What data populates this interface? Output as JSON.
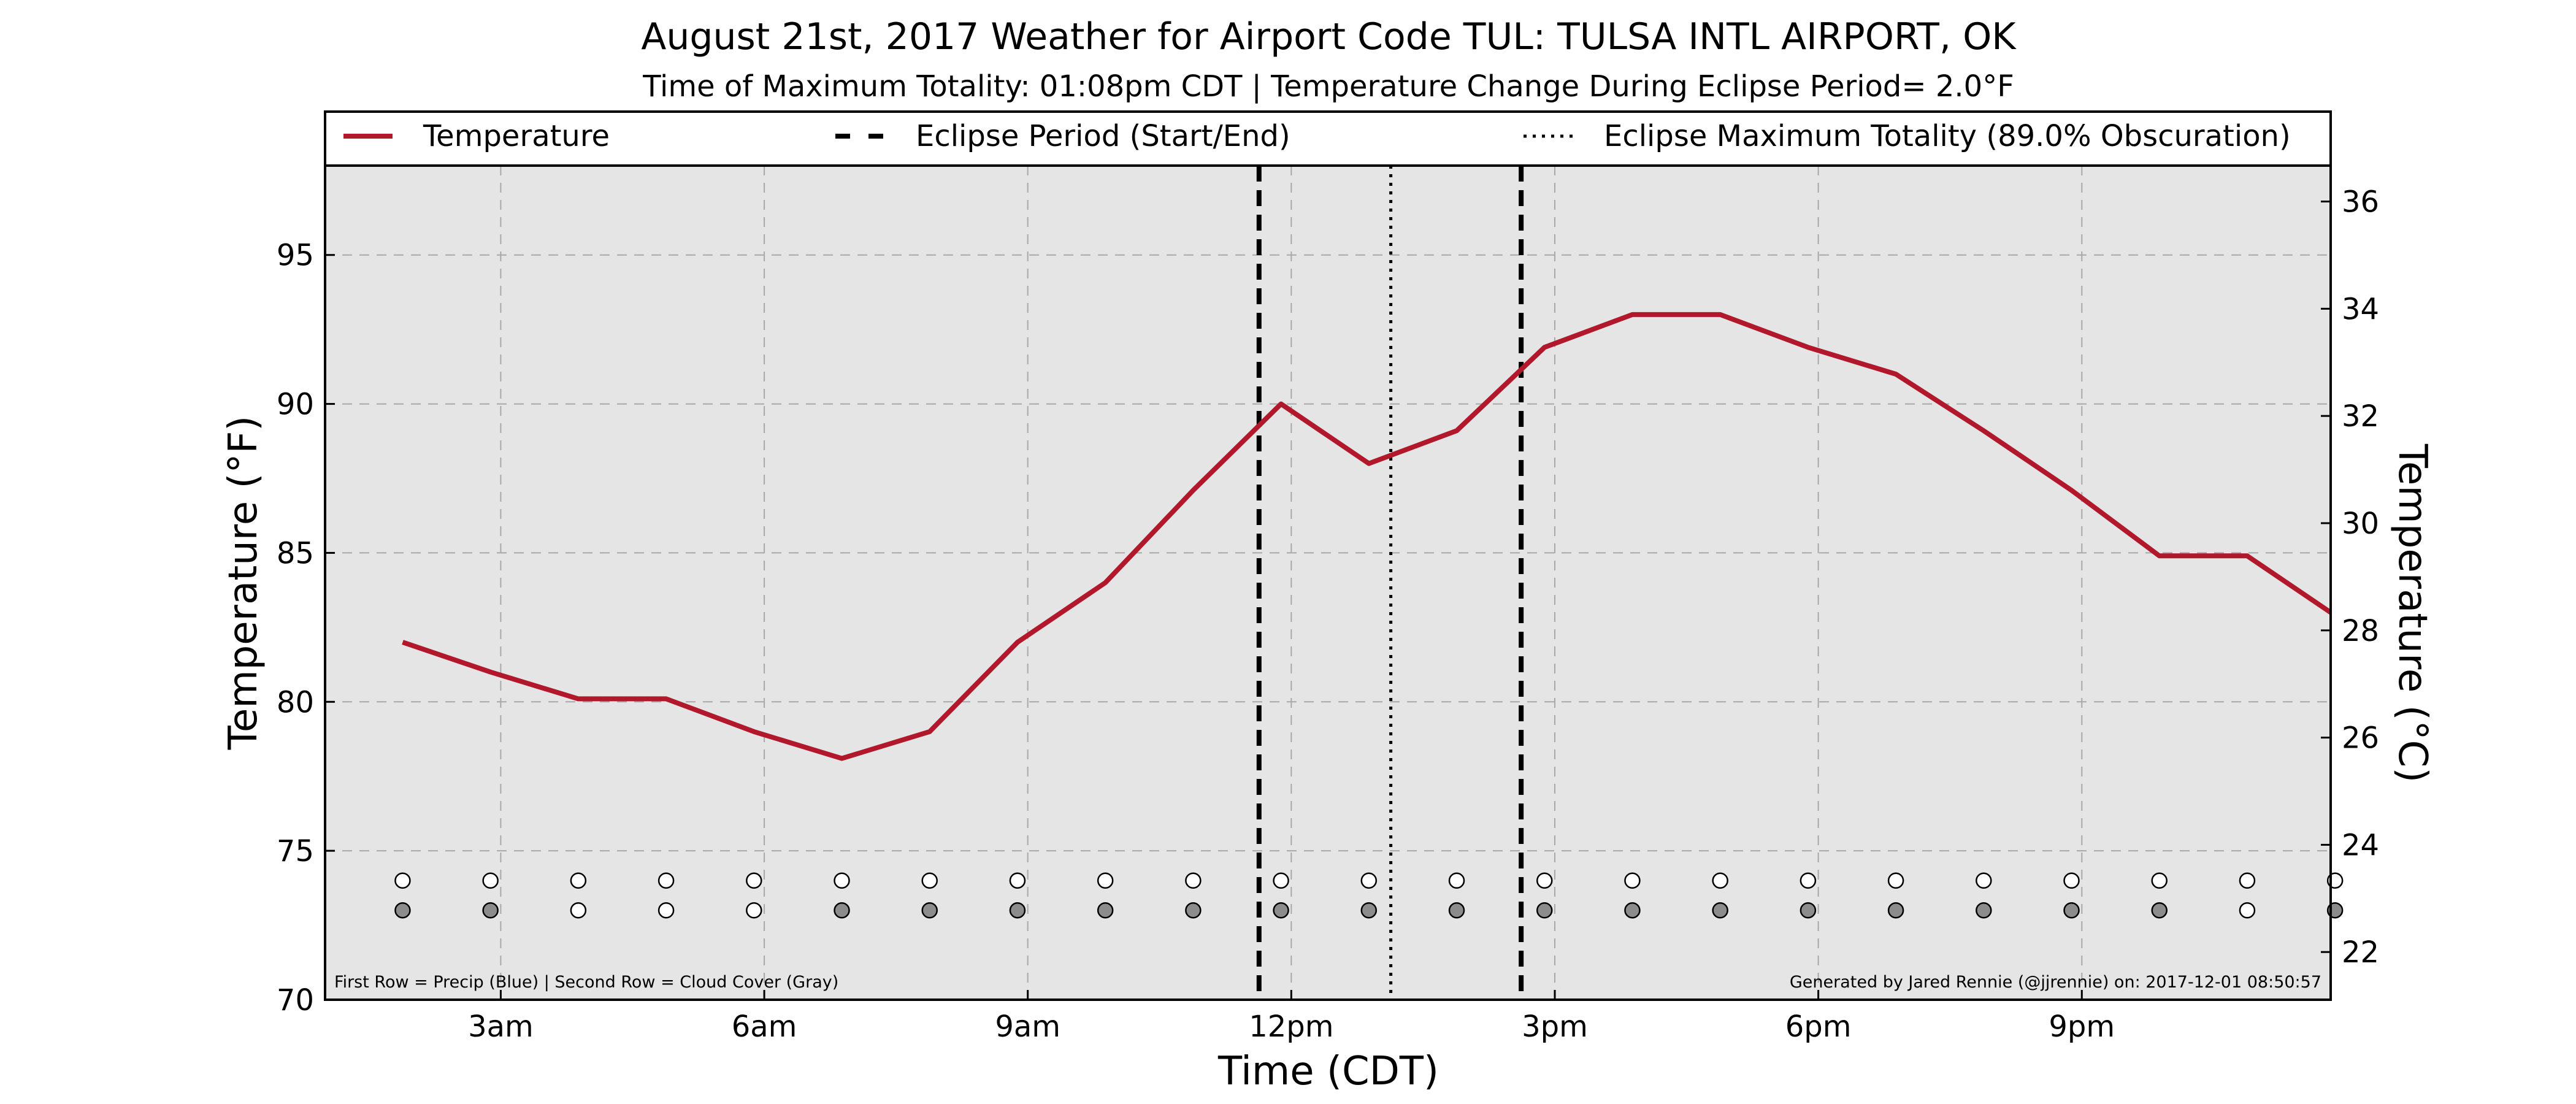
{
  "chart_data": {
    "type": "line",
    "title": "August 21st, 2017 Weather for Airport Code TUL: TULSA INTL AIRPORT, OK",
    "subtitle": "Time of Maximum Totality: 01:08pm CDT | Temperature Change During Eclipse Period= 2.0°F",
    "xlabel": "Time (CDT)",
    "ylabel": "Temperature (°F)",
    "ylabel_right": "Temperature (°C)",
    "xlim": [
      1.0,
      23.833
    ],
    "ylim": [
      70,
      98
    ],
    "ylim_right_celsius": [
      21.11,
      36.67
    ],
    "x_ticks": [
      {
        "x": 3,
        "label": "3am"
      },
      {
        "x": 6,
        "label": "6am"
      },
      {
        "x": 9,
        "label": "9am"
      },
      {
        "x": 12,
        "label": "12pm"
      },
      {
        "x": 15,
        "label": "3pm"
      },
      {
        "x": 18,
        "label": "6pm"
      },
      {
        "x": 21,
        "label": "9pm"
      }
    ],
    "y_ticks_left": [
      70,
      75,
      80,
      85,
      90,
      95
    ],
    "y_ticks_right": [
      22,
      24,
      26,
      28,
      30,
      32,
      34,
      36
    ],
    "grid": true,
    "legend_position": "top",
    "series": [
      {
        "name": "Temperature",
        "color": "#b2182b",
        "x": [
          1.883,
          2.883,
          3.883,
          4.883,
          5.883,
          6.883,
          7.883,
          8.883,
          9.883,
          10.883,
          11.883,
          12.883,
          13.883,
          14.883,
          15.883,
          16.883,
          17.883,
          18.883,
          19.883,
          20.883,
          21.883,
          22.883,
          23.883
        ],
        "values": [
          82,
          81,
          80.1,
          80.1,
          79,
          78.1,
          79,
          82,
          84,
          87.1,
          90,
          88,
          89.1,
          91.9,
          93,
          93,
          91.9,
          91,
          89.1,
          87.1,
          84.9,
          84.9,
          82.9
        ]
      }
    ],
    "legend": [
      {
        "label": "Temperature",
        "style": "solid",
        "color": "#b2182b"
      },
      {
        "label": "Eclipse Period (Start/End)",
        "style": "dashed",
        "color": "#000000"
      },
      {
        "label": "Eclipse Maximum Totality (89.0% Obscuration)",
        "style": "dotted",
        "color": "#000000"
      }
    ],
    "eclipse_lines": [
      {
        "x": 11.633,
        "style": "dashed",
        "label": "Eclipse start"
      },
      {
        "x": 13.133,
        "style": "dotted",
        "label": "Maximum totality"
      },
      {
        "x": 14.617,
        "style": "dashed",
        "label": "Eclipse end"
      }
    ],
    "indicator_rows": {
      "precip_y": 74,
      "cloud_y": 73,
      "precip_color": "#ffffff",
      "cloud_filled_color": "#8c8c8c",
      "cloud_clear_color": "#ffffff",
      "precip": [
        false,
        false,
        false,
        false,
        false,
        false,
        false,
        false,
        false,
        false,
        false,
        false,
        false,
        false,
        false,
        false,
        false,
        false,
        false,
        false,
        false,
        false,
        false
      ],
      "cloud_cover": [
        true,
        true,
        false,
        false,
        false,
        true,
        true,
        true,
        true,
        true,
        true,
        true,
        true,
        true,
        true,
        true,
        true,
        true,
        true,
        true,
        true,
        false,
        true
      ]
    },
    "notes": {
      "left": "First Row = Precip (Blue) | Second Row = Cloud Cover (Gray)",
      "right": "Generated by Jared Rennie (@jjrennie) on: 2017-12-01 08:50:57"
    }
  }
}
